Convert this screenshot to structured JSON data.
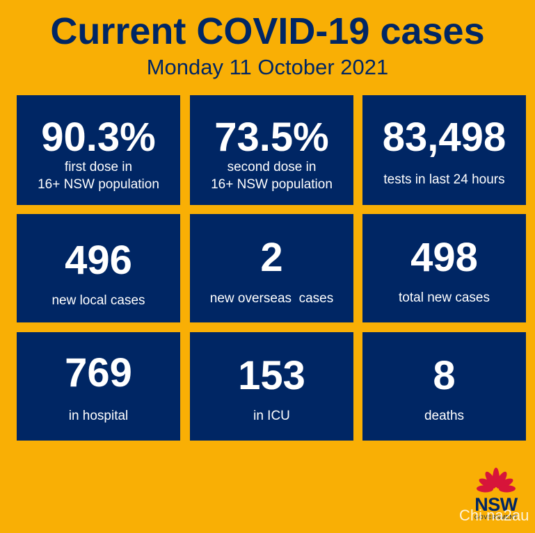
{
  "header": {
    "title": "Current COVID-19 cases",
    "date": "Monday 11 October 2021"
  },
  "tiles": [
    {
      "value": "90.3%",
      "label_line1": "first dose in",
      "label_line2": "16+ NSW population"
    },
    {
      "value": "73.5%",
      "label_line1": "second dose in",
      "label_line2": "16+ NSW population"
    },
    {
      "value": "83,498",
      "label": "tests in last 24 hours"
    },
    {
      "value": "496",
      "label": "new local cases"
    },
    {
      "value": "2",
      "label": "new overseas  cases"
    },
    {
      "value": "498",
      "label": "total new cases"
    },
    {
      "value": "769",
      "label": "in hospital"
    },
    {
      "value": "153",
      "label": "in ICU"
    },
    {
      "value": "8",
      "label": "deaths"
    }
  ],
  "logo": {
    "name": "NSW",
    "sub": "GOVERNMENT",
    "icon": "waratah-icon"
  },
  "watermark": "Chi na2au",
  "colors": {
    "background": "#F9AF05",
    "tile": "#002664",
    "logo_red": "#D7153A"
  }
}
